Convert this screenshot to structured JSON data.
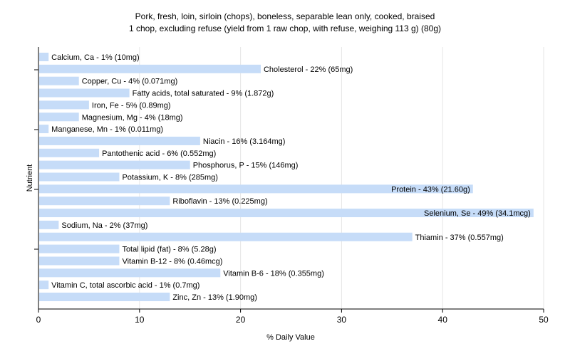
{
  "chart_data": {
    "type": "bar",
    "orientation": "horizontal",
    "title": [
      "Pork, fresh, loin, sirloin (chops), boneless, separable lean only, cooked, braised",
      "1 chop, excluding refuse (yield from 1 raw chop, with refuse, weighing 113 g) (80g)"
    ],
    "xlabel": "% Daily Value",
    "ylabel": "Nutrient",
    "xlim": [
      0,
      50
    ],
    "xticks": [
      "0",
      "10",
      "20",
      "30",
      "40",
      "50"
    ],
    "grid": true,
    "bar_color": "#c6dcf8",
    "categories": [
      "Calcium, Ca",
      "Cholesterol",
      "Copper, Cu",
      "Fatty acids, total saturated",
      "Iron, Fe",
      "Magnesium, Mg",
      "Manganese, Mn",
      "Niacin",
      "Pantothenic acid",
      "Phosphorus, P",
      "Potassium, K",
      "Protein",
      "Riboflavin",
      "Selenium, Se",
      "Sodium, Na",
      "Thiamin",
      "Total lipid (fat)",
      "Vitamin B-12",
      "Vitamin B-6",
      "Vitamin C, total ascorbic acid",
      "Zinc, Zn"
    ],
    "values": [
      1,
      22,
      4,
      9,
      5,
      4,
      1,
      16,
      6,
      15,
      8,
      43,
      13,
      49,
      2,
      37,
      8,
      8,
      18,
      1,
      13
    ],
    "labels": [
      "Calcium, Ca - 1% (10mg)",
      "Cholesterol - 22% (65mg)",
      "Copper, Cu - 4% (0.071mg)",
      "Fatty acids, total saturated - 9% (1.872g)",
      "Iron, Fe - 5% (0.89mg)",
      "Magnesium, Mg - 4% (18mg)",
      "Manganese, Mn - 1% (0.011mg)",
      "Niacin - 16% (3.164mg)",
      "Pantothenic acid - 6% (0.552mg)",
      "Phosphorus, P - 15% (146mg)",
      "Potassium, K - 8% (285mg)",
      "Protein - 43% (21.60g)",
      "Riboflavin - 13% (0.225mg)",
      "Selenium, Se - 49% (34.1mcg)",
      "Sodium, Na - 2% (37mg)",
      "Thiamin - 37% (0.557mg)",
      "Total lipid (fat) - 8% (5.28g)",
      "Vitamin B-12 - 8% (0.46mcg)",
      "Vitamin B-6 - 18% (0.355mg)",
      "Vitamin C, total ascorbic acid - 1% (0.7mg)",
      "Zinc, Zn - 13% (1.90mg)"
    ]
  }
}
